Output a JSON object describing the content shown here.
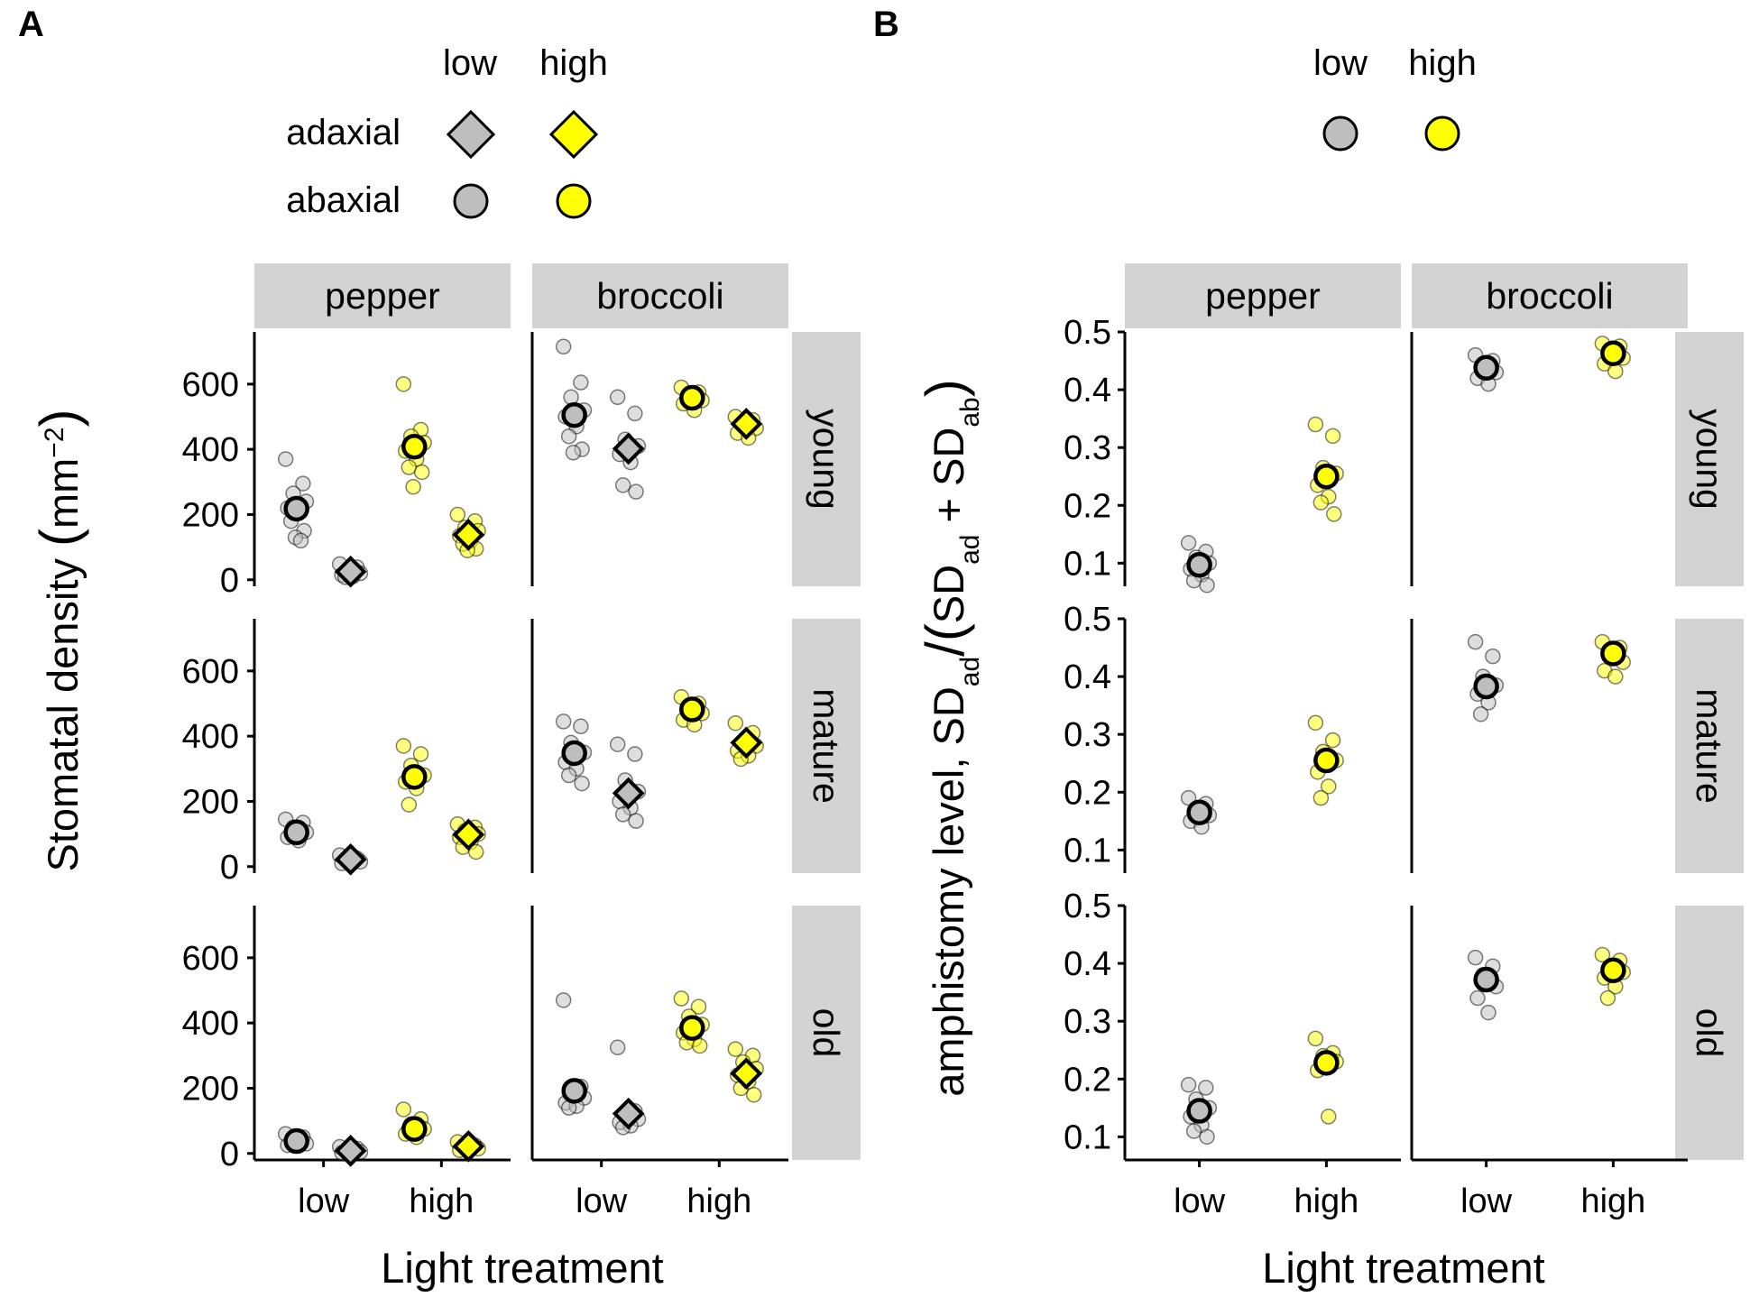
{
  "chart_data": [
    {
      "panel": "A",
      "type": "scatter",
      "ylabel": "Stomatal density",
      "ylabel_unit": "mm",
      "ylabel_exp": "−2",
      "xlabel": "Light treatment",
      "columns": [
        "pepper",
        "broccoli"
      ],
      "rows": [
        "young",
        "mature",
        "old"
      ],
      "categories": [
        "low",
        "high"
      ],
      "ylim": [
        -20,
        760
      ],
      "yticks": [
        0,
        200,
        400,
        600
      ],
      "legend": {
        "placement": "top",
        "col_labels": [
          "low",
          "high"
        ],
        "row_labels": [
          "adaxial",
          "abaxial"
        ]
      },
      "colors": {
        "low": "#bebebe",
        "high": "#ffff00"
      },
      "series": [
        {
          "species": "pepper",
          "age": "young",
          "surface": "abaxial",
          "light": "low",
          "mean": 218,
          "points": [
            370,
            295,
            265,
            240,
            220,
            205,
            180,
            150,
            130,
            120
          ]
        },
        {
          "species": "pepper",
          "age": "young",
          "surface": "adaxial",
          "light": "low",
          "mean": 25,
          "points": [
            48,
            38,
            28,
            20,
            15,
            10,
            8
          ]
        },
        {
          "species": "pepper",
          "age": "young",
          "surface": "abaxial",
          "light": "high",
          "mean": 408,
          "points": [
            600,
            460,
            440,
            420,
            395,
            370,
            345,
            330,
            285
          ]
        },
        {
          "species": "pepper",
          "age": "young",
          "surface": "adaxial",
          "light": "high",
          "mean": 138,
          "points": [
            200,
            180,
            160,
            150,
            135,
            120,
            110,
            95,
            90
          ]
        },
        {
          "species": "broccoli",
          "age": "young",
          "surface": "abaxial",
          "light": "low",
          "mean": 505,
          "points": [
            715,
            605,
            560,
            520,
            500,
            470,
            440,
            400,
            390
          ]
        },
        {
          "species": "broccoli",
          "age": "young",
          "surface": "adaxial",
          "light": "low",
          "mean": 402,
          "points": [
            560,
            510,
            430,
            410,
            385,
            360,
            290,
            270
          ]
        },
        {
          "species": "broccoli",
          "age": "young",
          "surface": "abaxial",
          "light": "high",
          "mean": 558,
          "points": [
            590,
            575,
            565,
            550,
            540,
            520
          ]
        },
        {
          "species": "broccoli",
          "age": "young",
          "surface": "adaxial",
          "light": "high",
          "mean": 478,
          "points": [
            500,
            490,
            475,
            465,
            450,
            435
          ]
        },
        {
          "species": "pepper",
          "age": "mature",
          "surface": "abaxial",
          "light": "low",
          "mean": 105,
          "points": [
            145,
            135,
            120,
            105,
            90,
            80
          ]
        },
        {
          "species": "pepper",
          "age": "mature",
          "surface": "adaxial",
          "light": "low",
          "mean": 22,
          "points": [
            35,
            25,
            20,
            15,
            10
          ]
        },
        {
          "species": "pepper",
          "age": "mature",
          "surface": "abaxial",
          "light": "high",
          "mean": 275,
          "points": [
            370,
            345,
            310,
            280,
            260,
            240,
            190
          ]
        },
        {
          "species": "pepper",
          "age": "mature",
          "surface": "adaxial",
          "light": "high",
          "mean": 98,
          "points": [
            130,
            120,
            110,
            100,
            90,
            75,
            60,
            45
          ]
        },
        {
          "species": "broccoli",
          "age": "mature",
          "surface": "abaxial",
          "light": "low",
          "mean": 348,
          "points": [
            445,
            430,
            380,
            350,
            320,
            300,
            280,
            255
          ]
        },
        {
          "species": "broccoli",
          "age": "mature",
          "surface": "adaxial",
          "light": "low",
          "mean": 225,
          "points": [
            375,
            345,
            265,
            230,
            200,
            180,
            160,
            140
          ]
        },
        {
          "species": "broccoli",
          "age": "mature",
          "surface": "abaxial",
          "light": "high",
          "mean": 482,
          "points": [
            520,
            500,
            490,
            470,
            450,
            435
          ]
        },
        {
          "species": "broccoli",
          "age": "mature",
          "surface": "adaxial",
          "light": "high",
          "mean": 380,
          "points": [
            440,
            410,
            385,
            370,
            355,
            340,
            330
          ]
        },
        {
          "species": "pepper",
          "age": "old",
          "surface": "abaxial",
          "light": "low",
          "mean": 38,
          "points": [
            60,
            50,
            40,
            30,
            25
          ]
        },
        {
          "species": "pepper",
          "age": "old",
          "surface": "adaxial",
          "light": "low",
          "mean": 8,
          "points": [
            20,
            15,
            10,
            5,
            2
          ]
        },
        {
          "species": "pepper",
          "age": "old",
          "surface": "abaxial",
          "light": "high",
          "mean": 75,
          "points": [
            135,
            105,
            90,
            75,
            60,
            50
          ]
        },
        {
          "species": "pepper",
          "age": "old",
          "surface": "adaxial",
          "light": "high",
          "mean": 22,
          "points": [
            35,
            25,
            20,
            15,
            10
          ]
        },
        {
          "species": "broccoli",
          "age": "old",
          "surface": "abaxial",
          "light": "low",
          "mean": 192,
          "points": [
            470,
            205,
            185,
            170,
            155,
            145,
            140
          ]
        },
        {
          "species": "broccoli",
          "age": "old",
          "surface": "adaxial",
          "light": "low",
          "mean": 122,
          "points": [
            325,
            130,
            115,
            105,
            95,
            85,
            80
          ]
        },
        {
          "species": "broccoli",
          "age": "old",
          "surface": "abaxial",
          "light": "high",
          "mean": 385,
          "points": [
            475,
            450,
            420,
            395,
            370,
            350,
            340,
            330
          ]
        },
        {
          "species": "broccoli",
          "age": "old",
          "surface": "adaxial",
          "light": "high",
          "mean": 245,
          "points": [
            320,
            300,
            280,
            260,
            240,
            220,
            200,
            180
          ]
        }
      ]
    },
    {
      "panel": "B",
      "type": "scatter",
      "ylabel": "amphistomy level, SD",
      "ylabel_sub": "ad",
      "ylabel_sep": "/",
      "ylabel_den1": "SD",
      "ylabel_den_sub1": "ad",
      "ylabel_plus": " + SD",
      "ylabel_den_sub2": "ab",
      "xlabel": "Light treatment",
      "columns": [
        "pepper",
        "broccoli"
      ],
      "rows": [
        "young",
        "mature",
        "old"
      ],
      "categories": [
        "low",
        "high"
      ],
      "ylim": [
        0.06,
        0.5
      ],
      "yticks": [
        0.1,
        0.2,
        0.3,
        0.4,
        0.5
      ],
      "ytick_labels": [
        "0.1",
        "0.2",
        "0.3",
        "0.4",
        "0.5"
      ],
      "legend": {
        "placement": "top",
        "col_labels": [
          "low",
          "high"
        ]
      },
      "colors": {
        "low": "#bebebe",
        "high": "#ffff00"
      },
      "series": [
        {
          "species": "pepper",
          "age": "young",
          "light": "low",
          "mean": 0.097,
          "points": [
            0.135,
            0.12,
            0.11,
            0.1,
            0.09,
            0.08,
            0.07,
            0.062
          ]
        },
        {
          "species": "pepper",
          "age": "young",
          "light": "high",
          "mean": 0.25,
          "points": [
            0.34,
            0.32,
            0.265,
            0.255,
            0.235,
            0.215,
            0.205,
            0.185
          ]
        },
        {
          "species": "broccoli",
          "age": "young",
          "light": "low",
          "mean": 0.438,
          "points": [
            0.46,
            0.45,
            0.44,
            0.43,
            0.42,
            0.41
          ]
        },
        {
          "species": "broccoli",
          "age": "young",
          "light": "high",
          "mean": 0.463,
          "points": [
            0.48,
            0.475,
            0.465,
            0.455,
            0.445,
            0.432
          ]
        },
        {
          "species": "pepper",
          "age": "mature",
          "light": "low",
          "mean": 0.165,
          "points": [
            0.19,
            0.18,
            0.17,
            0.16,
            0.15,
            0.14
          ]
        },
        {
          "species": "pepper",
          "age": "mature",
          "light": "high",
          "mean": 0.255,
          "points": [
            0.32,
            0.29,
            0.27,
            0.255,
            0.235,
            0.21,
            0.19
          ]
        },
        {
          "species": "broccoli",
          "age": "mature",
          "light": "low",
          "mean": 0.383,
          "points": [
            0.46,
            0.435,
            0.4,
            0.385,
            0.37,
            0.355,
            0.335
          ]
        },
        {
          "species": "broccoli",
          "age": "mature",
          "light": "high",
          "mean": 0.44,
          "points": [
            0.46,
            0.45,
            0.44,
            0.425,
            0.41,
            0.4
          ]
        },
        {
          "species": "pepper",
          "age": "old",
          "light": "low",
          "mean": 0.145,
          "points": [
            0.19,
            0.185,
            0.165,
            0.15,
            0.135,
            0.12,
            0.11,
            0.1
          ]
        },
        {
          "species": "pepper",
          "age": "old",
          "light": "high",
          "mean": 0.228,
          "points": [
            0.27,
            0.245,
            0.24,
            0.23,
            0.215,
            0.135
          ]
        },
        {
          "species": "broccoli",
          "age": "old",
          "light": "low",
          "mean": 0.372,
          "points": [
            0.41,
            0.395,
            0.38,
            0.36,
            0.34,
            0.315
          ]
        },
        {
          "species": "broccoli",
          "age": "old",
          "light": "high",
          "mean": 0.388,
          "points": [
            0.415,
            0.405,
            0.395,
            0.385,
            0.375,
            0.36,
            0.34
          ]
        }
      ]
    }
  ],
  "panel_labels": [
    "A",
    "B"
  ]
}
